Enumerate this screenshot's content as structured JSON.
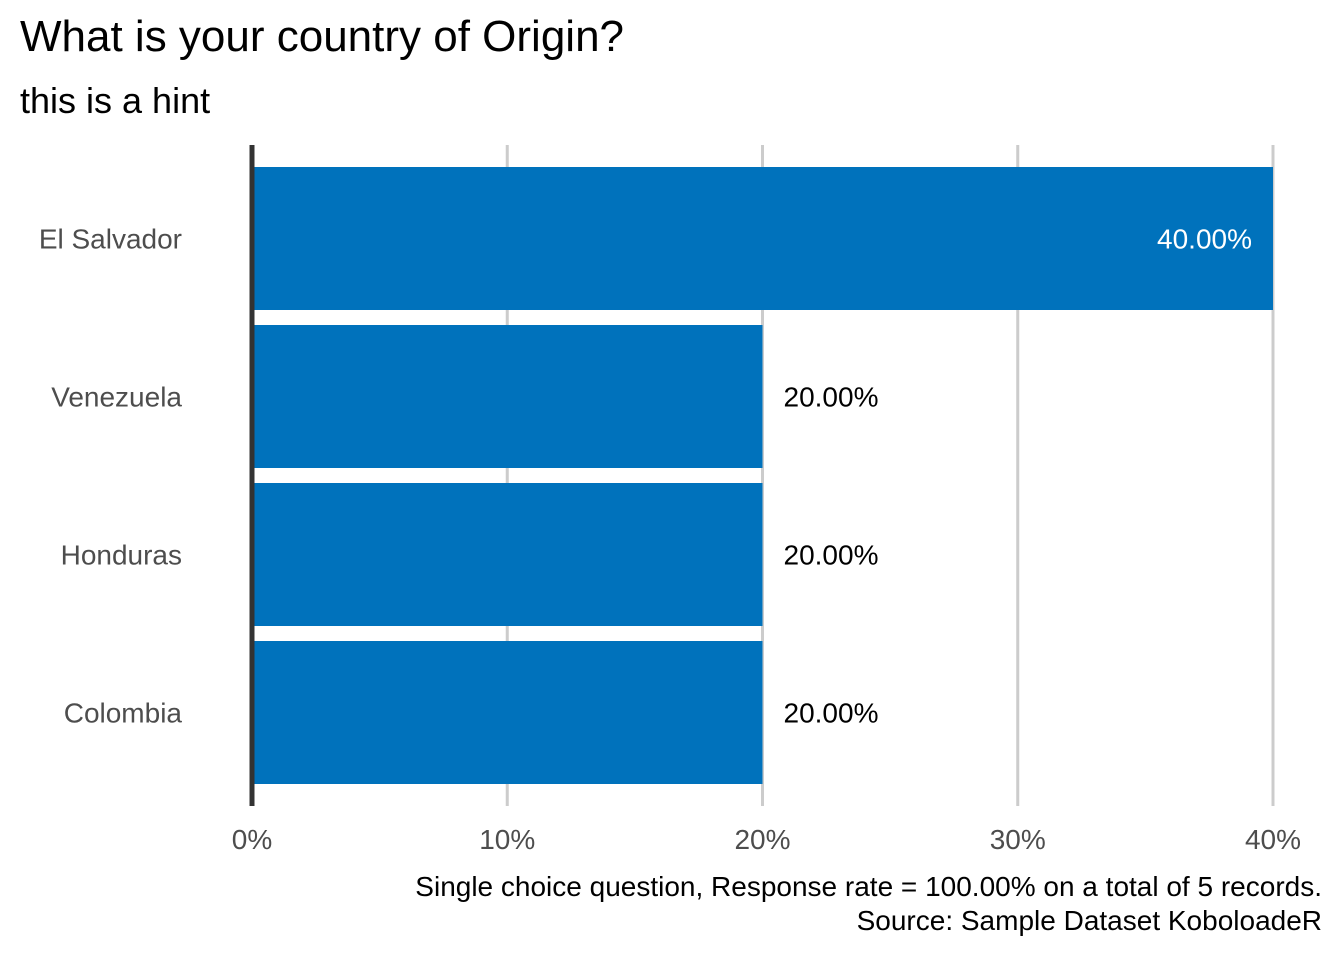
{
  "chart_data": {
    "type": "bar",
    "orientation": "horizontal",
    "title": "What is your country of Origin?",
    "subtitle": "this is a hint",
    "categories": [
      "El Salvador",
      "Venezuela",
      "Honduras",
      "Colombia"
    ],
    "values": [
      40,
      20,
      20,
      20
    ],
    "value_labels": [
      "40.00%",
      "20.00%",
      "20.00%",
      "20.00%"
    ],
    "xlim": [
      0,
      40
    ],
    "x_ticks": [
      0,
      10,
      20,
      30,
      40
    ],
    "x_tick_labels": [
      "0%",
      "10%",
      "20%",
      "30%",
      "40%"
    ],
    "xlabel": "",
    "ylabel": "",
    "grid": "vertical major",
    "bar_color": "#0072BC",
    "caption_lines": [
      "Single choice question, Response rate = 100.00% on a total of 5 records.",
      "Source: Sample Dataset KoboloadeR"
    ]
  }
}
